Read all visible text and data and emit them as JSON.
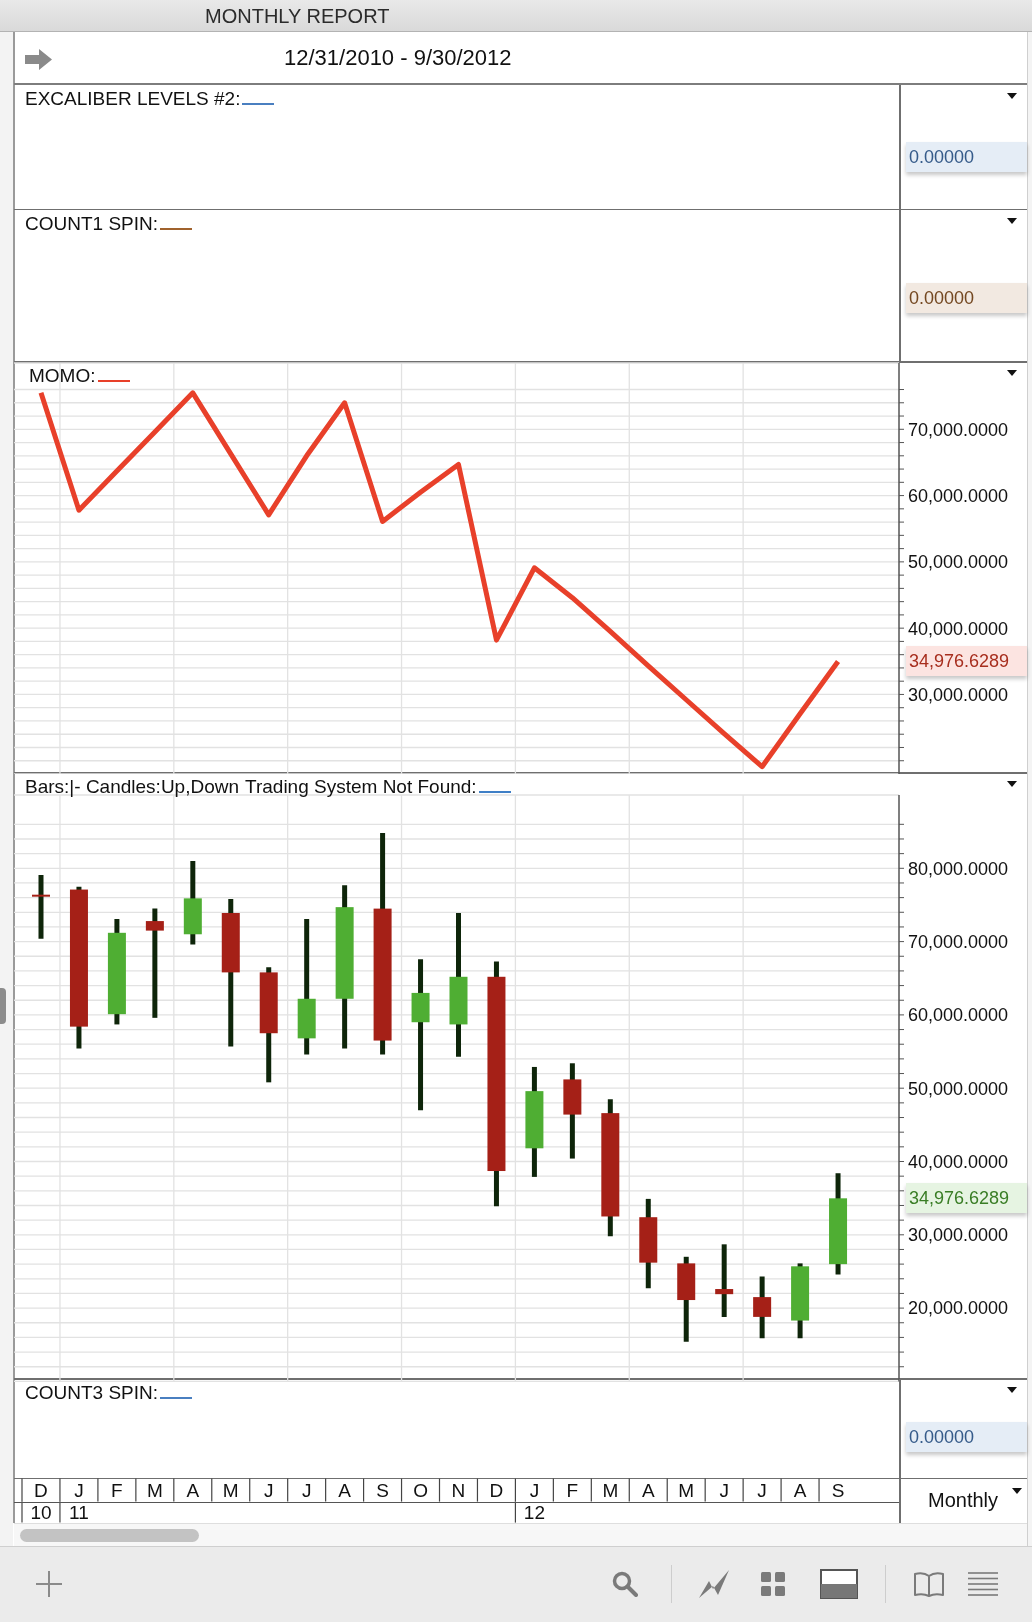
{
  "chart_data": [
    {
      "type": "other",
      "title": "MONTHLY REPORT",
      "subtitle": "12/31/2010 - 9/30/2012"
    },
    {
      "type": "other",
      "title": "EXCALIBER LEVELS #2:",
      "color": "#4a7fc0",
      "annotations": [
        "0.00000"
      ]
    },
    {
      "type": "other",
      "title": "COUNT1 SPIN:",
      "color": "#a0622d",
      "annotations": [
        "0.00000"
      ]
    },
    {
      "type": "line",
      "categories": [
        null,
        null,
        null,
        null,
        null,
        null,
        null,
        null,
        null,
        null,
        null,
        null,
        null,
        null,
        null,
        null,
        null,
        null,
        null,
        null,
        null,
        null
      ],
      "series": [
        {
          "name": "MOMO:",
          "color": "#e8402a",
          "values": [
            75500,
            57800,
            63700,
            69600,
            75500,
            66300,
            57100,
            66000,
            74000,
            56100,
            60500,
            64700,
            38200,
            49100,
            44600,
            39500,
            34300,
            29200,
            24100,
            19100,
            27100,
            34976.6289
          ]
        }
      ],
      "ylim": [
        18000,
        80000
      ],
      "yticks": [
        {
          "value": 20000,
          "label": null
        },
        {
          "value": 22000,
          "label": null
        },
        {
          "value": 24000,
          "label": null
        },
        {
          "value": 26000,
          "label": null
        },
        {
          "value": 28000,
          "label": null
        },
        {
          "value": 30000,
          "label": "30,000.0000"
        },
        {
          "value": 32000,
          "label": null
        },
        {
          "value": 34000,
          "label": null
        },
        {
          "value": 36000,
          "label": null
        },
        {
          "value": 38000,
          "label": null
        },
        {
          "value": 40000,
          "label": "40,000.0000"
        },
        {
          "value": 42000,
          "label": null
        },
        {
          "value": 44000,
          "label": null
        },
        {
          "value": 46000,
          "label": null
        },
        {
          "value": 48000,
          "label": null
        },
        {
          "value": 50000,
          "label": "50,000.0000"
        },
        {
          "value": 52000,
          "label": null
        },
        {
          "value": 54000,
          "label": null
        },
        {
          "value": 56000,
          "label": null
        },
        {
          "value": 58000,
          "label": null
        },
        {
          "value": 60000,
          "label": "60,000.0000"
        },
        {
          "value": 62000,
          "label": null
        },
        {
          "value": 64000,
          "label": null
        },
        {
          "value": 66000,
          "label": null
        },
        {
          "value": 68000,
          "label": null
        },
        {
          "value": 70000,
          "label": "70,000.0000"
        },
        {
          "value": 72000,
          "label": null
        },
        {
          "value": 74000,
          "label": null
        },
        {
          "value": 76000,
          "label": null
        }
      ],
      "tick_labels": "y",
      "grid": true,
      "legend": "top left",
      "annotations": [
        "34,976.6289"
      ]
    },
    {
      "type": "candlestick",
      "categories": [
        "D\n10",
        "J\n11",
        "F",
        "M",
        "A",
        "M",
        "J",
        "J",
        "A",
        "S",
        "O",
        "N",
        "D",
        "J\n12",
        "F",
        "M",
        "A",
        "M",
        "J",
        "J",
        "A",
        "S"
      ],
      "ohlc": [
        [
          76400,
          79100,
          70400,
          76200
        ],
        [
          77100,
          77500,
          55400,
          58400
        ],
        [
          60100,
          73100,
          58700,
          71200
        ],
        [
          72800,
          74500,
          59600,
          71500
        ],
        [
          71000,
          81000,
          69600,
          75900
        ],
        [
          73900,
          75800,
          55700,
          65800
        ],
        [
          65800,
          66500,
          50800,
          57500
        ],
        [
          56800,
          73100,
          54600,
          62200
        ],
        [
          62200,
          77700,
          55400,
          74700
        ],
        [
          74500,
          84800,
          54600,
          56500
        ],
        [
          59000,
          67600,
          47000,
          63000
        ],
        [
          58700,
          73900,
          54300,
          65200
        ],
        [
          65200,
          67300,
          33900,
          38700
        ],
        [
          41800,
          52900,
          37900,
          49600
        ],
        [
          51200,
          53400,
          40400,
          46400
        ],
        [
          46600,
          48500,
          29800,
          32500
        ],
        [
          32400,
          34900,
          22700,
          26200
        ],
        [
          26100,
          27000,
          15400,
          21100
        ],
        [
          22600,
          28700,
          18800,
          21900
        ],
        [
          21500,
          24300,
          15900,
          18800
        ],
        [
          18300,
          26100,
          15900,
          25700
        ],
        [
          26000,
          38400,
          24600,
          34976.6289
        ]
      ],
      "colors": [
        "#a52017",
        "#a52017",
        "#4fae33",
        "#a52017",
        "#4fae33",
        "#a52017",
        "#a52017",
        "#4fae33",
        "#4fae33",
        "#a52017",
        "#4fae33",
        "#4fae33",
        "#a52017",
        "#4fae33",
        "#a52017",
        "#a52017",
        "#a52017",
        "#a52017",
        "#a52017",
        "#a52017",
        "#4fae33",
        "#4fae33"
      ],
      "legend_title": "Bars:|- Candles:Up,Down",
      "series": [
        {
          "name": "Trading System Not Found:",
          "type": "line",
          "color": "#3f7fc6",
          "values": [
            null,
            null,
            null,
            null,
            null,
            null,
            null,
            null,
            null,
            null,
            null,
            null,
            null,
            null,
            null,
            null,
            null,
            null,
            null,
            null,
            null,
            null
          ]
        }
      ],
      "ylim": [
        10000,
        90000
      ],
      "yticks": [
        {
          "value": 12000,
          "label": null
        },
        {
          "value": 14000,
          "label": null
        },
        {
          "value": 16000,
          "label": null
        },
        {
          "value": 18000,
          "label": null
        },
        {
          "value": 20000,
          "label": "20,000.0000"
        },
        {
          "value": 22000,
          "label": null
        },
        {
          "value": 24000,
          "label": null
        },
        {
          "value": 26000,
          "label": null
        },
        {
          "value": 28000,
          "label": null
        },
        {
          "value": 30000,
          "label": "30,000.0000"
        },
        {
          "value": 32000,
          "label": null
        },
        {
          "value": 34000,
          "label": null
        },
        {
          "value": 36000,
          "label": null
        },
        {
          "value": 38000,
          "label": null
        },
        {
          "value": 40000,
          "label": "40,000.0000"
        },
        {
          "value": 42000,
          "label": null
        },
        {
          "value": 44000,
          "label": null
        },
        {
          "value": 46000,
          "label": null
        },
        {
          "value": 48000,
          "label": null
        },
        {
          "value": 50000,
          "label": "50,000.0000"
        },
        {
          "value": 52000,
          "label": null
        },
        {
          "value": 54000,
          "label": null
        },
        {
          "value": 56000,
          "label": null
        },
        {
          "value": 58000,
          "label": null
        },
        {
          "value": 60000,
          "label": "60,000.0000"
        },
        {
          "value": 62000,
          "label": null
        },
        {
          "value": 64000,
          "label": null
        },
        {
          "value": 66000,
          "label": null
        },
        {
          "value": 68000,
          "label": null
        },
        {
          "value": 70000,
          "label": "70,000.0000"
        },
        {
          "value": 72000,
          "label": null
        },
        {
          "value": 74000,
          "label": null
        },
        {
          "value": 76000,
          "label": null
        },
        {
          "value": 78000,
          "label": null
        },
        {
          "value": 80000,
          "label": "80,000.0000"
        },
        {
          "value": 82000,
          "label": null
        },
        {
          "value": 84000,
          "label": null
        },
        {
          "value": 86000,
          "label": null
        }
      ],
      "grid": true,
      "legend": "top left",
      "annotations": [
        "34,976.6289",
        "Monthly"
      ]
    },
    {
      "type": "other",
      "title": "COUNT3 SPIN:",
      "color": "#4a7fc0",
      "annotations": [
        "0.00000"
      ]
    }
  ]
}
